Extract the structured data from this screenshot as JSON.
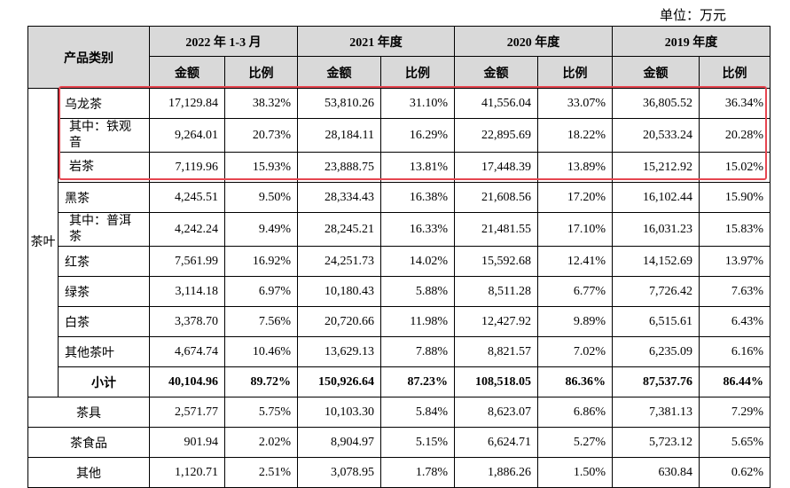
{
  "unit_label": "单位：万元",
  "header": {
    "product_category": "产品类别",
    "periods": [
      "2022 年 1-3 月",
      "2021 年度",
      "2020 年度",
      "2019 年度"
    ],
    "amount": "金额",
    "ratio": "比例"
  },
  "tea_group_label": "茶叶",
  "rows": [
    {
      "label": "乌龙茶",
      "values": [
        "17,129.84",
        "38.32%",
        "53,810.26",
        "31.10%",
        "41,556.04",
        "33.07%",
        "36,805.52",
        "36.34%"
      ]
    },
    {
      "label": "其中：铁观音",
      "values": [
        "9,264.01",
        "20.73%",
        "28,184.11",
        "16.29%",
        "22,895.69",
        "18.22%",
        "20,533.24",
        "20.28%"
      ]
    },
    {
      "label": "岩茶",
      "values": [
        "7,119.96",
        "15.93%",
        "23,888.75",
        "13.81%",
        "17,448.39",
        "13.89%",
        "15,212.92",
        "15.02%"
      ]
    },
    {
      "label": "黑茶",
      "values": [
        "4,245.51",
        "9.50%",
        "28,334.43",
        "16.38%",
        "21,608.56",
        "17.20%",
        "16,102.44",
        "15.90%"
      ]
    },
    {
      "label": "其中：普洱茶",
      "values": [
        "4,242.24",
        "9.49%",
        "28,245.21",
        "16.33%",
        "21,481.55",
        "17.10%",
        "16,031.23",
        "15.83%"
      ]
    },
    {
      "label": "红茶",
      "values": [
        "7,561.99",
        "16.92%",
        "24,251.73",
        "14.02%",
        "15,592.68",
        "12.41%",
        "14,152.69",
        "13.97%"
      ]
    },
    {
      "label": "绿茶",
      "values": [
        "3,114.18",
        "6.97%",
        "10,180.43",
        "5.88%",
        "8,511.28",
        "6.77%",
        "7,726.42",
        "7.63%"
      ]
    },
    {
      "label": "白茶",
      "values": [
        "3,378.70",
        "7.56%",
        "20,720.66",
        "11.98%",
        "12,427.92",
        "9.89%",
        "6,515.61",
        "6.43%"
      ]
    },
    {
      "label": "其他茶叶",
      "values": [
        "4,674.74",
        "10.46%",
        "13,629.13",
        "7.88%",
        "8,821.57",
        "7.02%",
        "6,235.09",
        "6.16%"
      ]
    }
  ],
  "subtotal": {
    "label": "小计",
    "values": [
      "40,104.96",
      "89.72%",
      "150,926.64",
      "87.23%",
      "108,518.05",
      "86.36%",
      "87,537.76",
      "86.44%"
    ]
  },
  "other_rows": [
    {
      "label": "茶具",
      "values": [
        "2,571.77",
        "5.75%",
        "10,103.30",
        "5.84%",
        "8,623.07",
        "6.86%",
        "7,381.13",
        "7.29%"
      ]
    },
    {
      "label": "茶食品",
      "values": [
        "901.94",
        "2.02%",
        "8,904.97",
        "5.15%",
        "6,624.71",
        "5.27%",
        "5,723.12",
        "5.65%"
      ]
    },
    {
      "label": "其他",
      "values": [
        "1,120.71",
        "2.51%",
        "3,078.95",
        "1.78%",
        "1,886.26",
        "1.50%",
        "630.84",
        "0.62%"
      ]
    }
  ],
  "highlight_color": "#e64550",
  "header_bg": "#d9d9d9"
}
